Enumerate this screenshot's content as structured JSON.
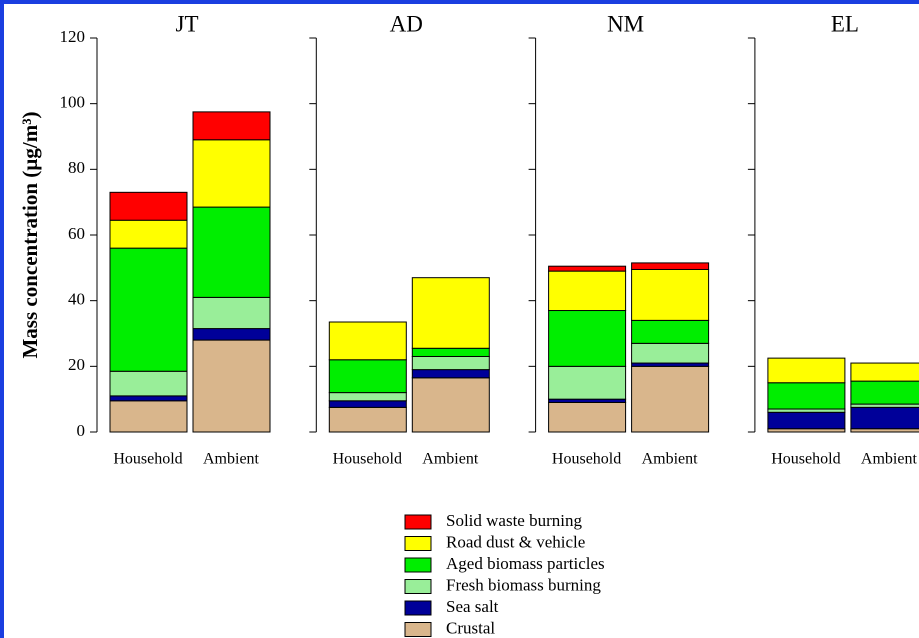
{
  "chart_data": {
    "type": "bar",
    "stacked": true,
    "ylabel": "Mass concentration (µg/m³)",
    "groups": [
      "JT",
      "AD",
      "NM",
      "EL"
    ],
    "categories": [
      "Household",
      "Ambient",
      "Household",
      "Ambient",
      "Household",
      "Ambient",
      "Household",
      "Ambient"
    ],
    "ylim": [
      0,
      120
    ],
    "yticks": [
      0,
      20,
      40,
      60,
      80,
      100,
      120
    ],
    "series": [
      {
        "name": "Crustal",
        "color": "#d9b68c",
        "values": [
          9.5,
          28,
          7.5,
          16.5,
          9,
          20,
          1,
          1
        ]
      },
      {
        "name": "Sea salt",
        "color": "#000099",
        "values": [
          1.5,
          3.5,
          2,
          2.5,
          1,
          1,
          5,
          6.5
        ]
      },
      {
        "name": "Fresh biomass burning",
        "color": "#99ee99",
        "values": [
          7.5,
          9.5,
          2.5,
          4,
          10,
          6,
          1,
          1
        ]
      },
      {
        "name": "Aged biomass particles",
        "color": "#00ee00",
        "values": [
          37.5,
          27.5,
          10,
          2.5,
          17,
          7,
          8,
          7
        ]
      },
      {
        "name": "Road dust & vehicle",
        "color": "#ffff00",
        "values": [
          8.5,
          20.5,
          11.5,
          21.5,
          12,
          15.5,
          7.5,
          5.5
        ]
      },
      {
        "name": "Solid waste burning",
        "color": "#ff0000",
        "values": [
          8.5,
          8.5,
          0,
          0,
          1.5,
          2,
          0,
          0
        ]
      }
    ]
  }
}
